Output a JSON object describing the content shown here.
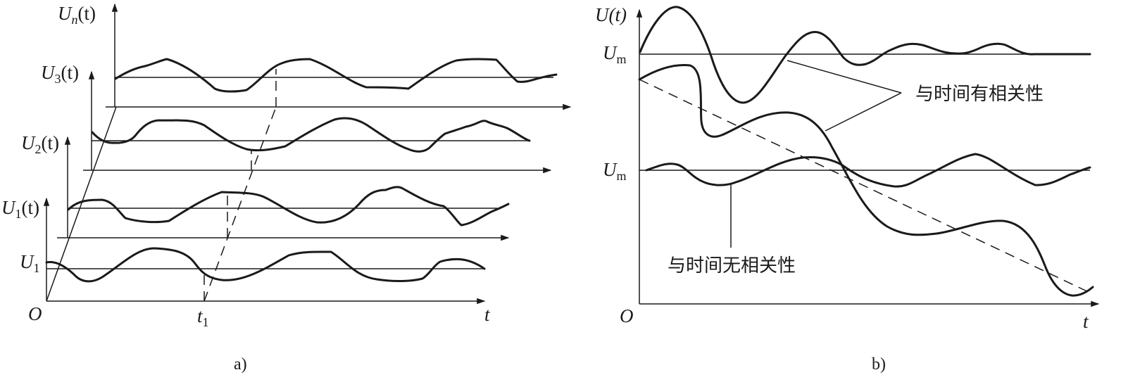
{
  "panel_a": {
    "caption": "a)",
    "origin_label": "O",
    "time_axis_label": "t",
    "time_marker_label": "t",
    "time_marker_sub": "1",
    "level_label": "U",
    "level_sub": "1",
    "axis_labels": [
      {
        "main": "U",
        "sub": "1",
        "tail": "(t)"
      },
      {
        "main": "U",
        "sub": "2",
        "tail": "(t)"
      },
      {
        "main": "U",
        "sub": "3",
        "tail": "(t)"
      },
      {
        "main": "U",
        "sub": "n",
        "tail": "(t)"
      }
    ]
  },
  "panel_b": {
    "caption": "b)",
    "origin_label": "O",
    "time_axis_label": "t",
    "y_axis_label": "U(t)",
    "level_labels": [
      {
        "main": "U",
        "sub": "m"
      },
      {
        "main": "U",
        "sub": "m"
      }
    ],
    "annotation_correlated": "与时间有相关性",
    "annotation_uncorrelated": "与时间无相关性"
  },
  "colors": {
    "ink": "#1a1a1a",
    "background": "#ffffff"
  }
}
